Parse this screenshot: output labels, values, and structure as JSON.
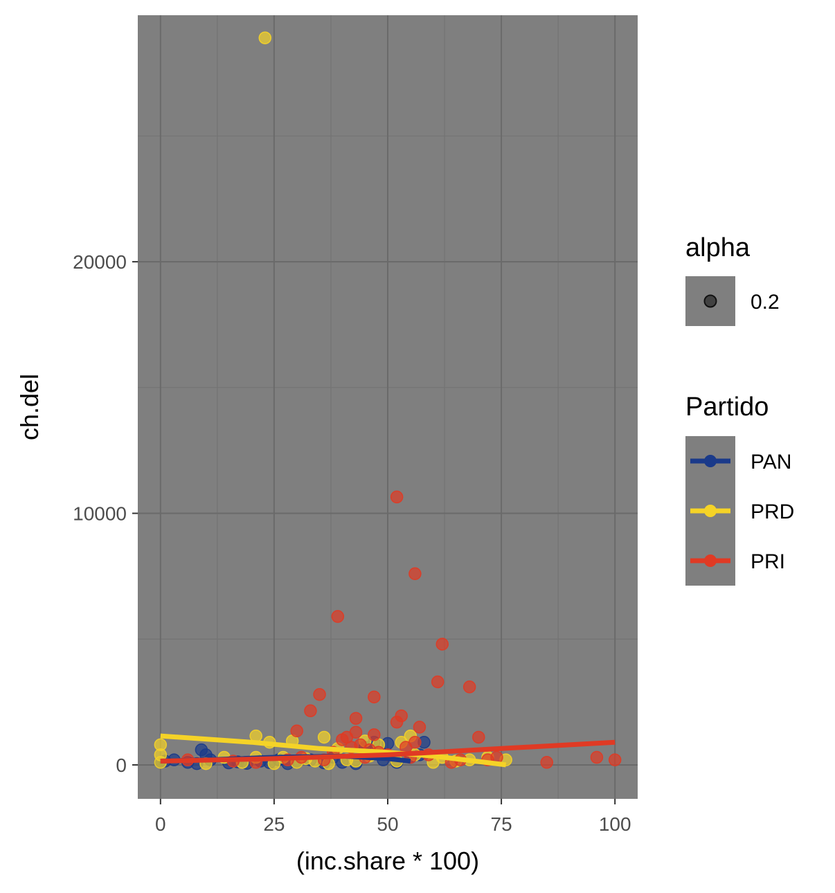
{
  "chart_data": {
    "type": "scatter",
    "xlabel": "(inc.share * 100)",
    "ylabel": "ch.del",
    "xlim": [
      -5,
      105
    ],
    "ylim": [
      -1350,
      29800
    ],
    "x_ticks": [
      0,
      25,
      50,
      75,
      100
    ],
    "x_tick_labels": [
      "0",
      "25",
      "50",
      "75",
      "100"
    ],
    "y_ticks": [
      0,
      10000,
      20000
    ],
    "y_tick_labels": [
      "0",
      "10000",
      "20000"
    ],
    "grid": true,
    "legend_position": "right",
    "panel_color": "#7f7f7f",
    "legends": {
      "alpha": {
        "title": "alpha",
        "label": "0.2"
      },
      "color": {
        "title": "Partido",
        "labels": [
          "PAN",
          "PRD",
          "PRI"
        ]
      }
    },
    "series": [
      {
        "name": "PAN",
        "color": "#1a3a8a",
        "points": [
          [
            0,
            100
          ],
          [
            1,
            150
          ],
          [
            3,
            200
          ],
          [
            6,
            100
          ],
          [
            8,
            50
          ],
          [
            9,
            600
          ],
          [
            10,
            400
          ],
          [
            11,
            200
          ],
          [
            15,
            80
          ],
          [
            17,
            120
          ],
          [
            19,
            60
          ],
          [
            22,
            150
          ],
          [
            24,
            90
          ],
          [
            26,
            200
          ],
          [
            28,
            50
          ],
          [
            30,
            100
          ],
          [
            33,
            200
          ],
          [
            36,
            80
          ],
          [
            38,
            300
          ],
          [
            40,
            100
          ],
          [
            43,
            50
          ],
          [
            45,
            700
          ],
          [
            47,
            900
          ],
          [
            49,
            200
          ],
          [
            50,
            850
          ],
          [
            52,
            100
          ],
          [
            55,
            300
          ],
          [
            57,
            400
          ],
          [
            58,
            900
          ]
        ],
        "trend": [
          [
            0,
            150
          ],
          [
            10,
            200
          ],
          [
            25,
            300
          ],
          [
            40,
            350
          ],
          [
            50,
            250
          ],
          [
            55,
            150
          ]
        ]
      },
      {
        "name": "PRD",
        "color": "#f5d327",
        "points": [
          [
            0,
            800
          ],
          [
            0,
            400
          ],
          [
            0,
            100
          ],
          [
            10,
            50
          ],
          [
            14,
            300
          ],
          [
            18,
            100
          ],
          [
            21,
            1150
          ],
          [
            21,
            300
          ],
          [
            23,
            28900
          ],
          [
            24,
            900
          ],
          [
            25,
            50
          ],
          [
            27,
            300
          ],
          [
            29,
            950
          ],
          [
            30,
            100
          ],
          [
            32,
            250
          ],
          [
            34,
            150
          ],
          [
            36,
            1100
          ],
          [
            37,
            50
          ],
          [
            39,
            650
          ],
          [
            41,
            200
          ],
          [
            43,
            150
          ],
          [
            45,
            950
          ],
          [
            46,
            350
          ],
          [
            48,
            800
          ],
          [
            52,
            150
          ],
          [
            53,
            900
          ],
          [
            55,
            1150
          ],
          [
            56,
            400
          ],
          [
            60,
            100
          ],
          [
            62,
            300
          ],
          [
            65,
            150
          ],
          [
            68,
            200
          ],
          [
            72,
            300
          ],
          [
            76,
            200
          ]
        ],
        "trend": [
          [
            0,
            1150
          ],
          [
            20,
            900
          ],
          [
            35,
            650
          ],
          [
            50,
            500
          ],
          [
            60,
            350
          ],
          [
            76,
            0
          ]
        ]
      },
      {
        "name": "PRI",
        "color": "#e03a24",
        "points": [
          [
            6,
            200
          ],
          [
            16,
            150
          ],
          [
            21,
            100
          ],
          [
            28,
            200
          ],
          [
            30,
            1350
          ],
          [
            31,
            300
          ],
          [
            33,
            2150
          ],
          [
            35,
            2800
          ],
          [
            36,
            200
          ],
          [
            38,
            500
          ],
          [
            39,
            5900
          ],
          [
            40,
            1000
          ],
          [
            41,
            1100
          ],
          [
            42,
            700
          ],
          [
            43,
            1300
          ],
          [
            43,
            1850
          ],
          [
            44,
            800
          ],
          [
            45,
            300
          ],
          [
            46,
            600
          ],
          [
            47,
            2700
          ],
          [
            47,
            1200
          ],
          [
            48,
            500
          ],
          [
            50,
            400
          ],
          [
            52,
            10650
          ],
          [
            52,
            1700
          ],
          [
            53,
            1950
          ],
          [
            54,
            700
          ],
          [
            55,
            300
          ],
          [
            56,
            7600
          ],
          [
            56,
            900
          ],
          [
            57,
            1500
          ],
          [
            59,
            400
          ],
          [
            61,
            3300
          ],
          [
            62,
            4800
          ],
          [
            64,
            100
          ],
          [
            66,
            200
          ],
          [
            68,
            3100
          ],
          [
            70,
            1100
          ],
          [
            72,
            200
          ],
          [
            74,
            300
          ],
          [
            85,
            100
          ],
          [
            96,
            300
          ],
          [
            100,
            200
          ]
        ],
        "trend": [
          [
            0,
            150
          ],
          [
            25,
            250
          ],
          [
            50,
            400
          ],
          [
            75,
            650
          ],
          [
            100,
            900
          ]
        ]
      }
    ]
  }
}
